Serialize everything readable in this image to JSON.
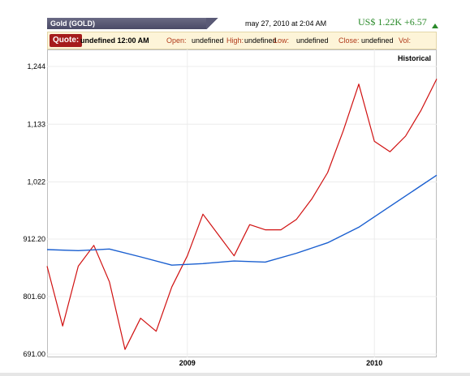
{
  "header": {
    "title": "Gold (GOLD)",
    "timestamp": "may 27, 2010 at 2:04 AM",
    "price": "US$ 1.22K +6.57"
  },
  "quote_bar": {
    "tag": "Quote:",
    "time_value": "undefined 12:00 AM",
    "open_label": "Open:",
    "open_value": "undefined",
    "high_label": "High:",
    "high_value": "undefined",
    "low_label": "Low:",
    "low_value": "undefined",
    "close_label": "Close:",
    "close_value": "undefined",
    "vol_label": "Vol:"
  },
  "chart_data": {
    "type": "line",
    "legend_label": "Historical",
    "yticks": [
      "1,244",
      "1,133",
      "1,022",
      "912.20",
      "801.60",
      "691.00"
    ],
    "xticks": [
      "2009",
      "2010"
    ],
    "ylim": [
      691,
      1244
    ],
    "x_range": [
      "2008-04",
      "2010-05"
    ],
    "grid": true,
    "colors": {
      "price": "#d01010",
      "moving_average": "#1a5fd0"
    },
    "series": [
      {
        "x": [
          "2008-04",
          "2008-05",
          "2008-06",
          "2008-07",
          "2008-08",
          "2008-09",
          "2008-10",
          "2008-11",
          "2008-12",
          "2009-01",
          "2009-02",
          "2009-03",
          "2009-04",
          "2009-05",
          "2009-06",
          "2009-07",
          "2009-08",
          "2009-09",
          "2009-10",
          "2009-11",
          "2009-12",
          "2010-01",
          "2010-02",
          "2010-03",
          "2010-04",
          "2010-05"
        ],
        "values": [
          860,
          745,
          860,
          900,
          830,
          700,
          760,
          735,
          820,
          880,
          960,
          920,
          880,
          940,
          930,
          930,
          950,
          990,
          1040,
          1120,
          1210,
          1100,
          1080,
          1110,
          1160,
          1220
        ]
      },
      {
        "x": [
          "2008-04",
          "2008-06",
          "2008-08",
          "2008-10",
          "2008-12",
          "2009-02",
          "2009-04",
          "2009-06",
          "2009-08",
          "2009-10",
          "2009-12",
          "2010-02",
          "2010-04",
          "2010-05"
        ],
        "values": [
          892,
          890,
          893,
          878,
          862,
          865,
          870,
          868,
          885,
          905,
          935,
          975,
          1015,
          1035
        ]
      }
    ]
  }
}
